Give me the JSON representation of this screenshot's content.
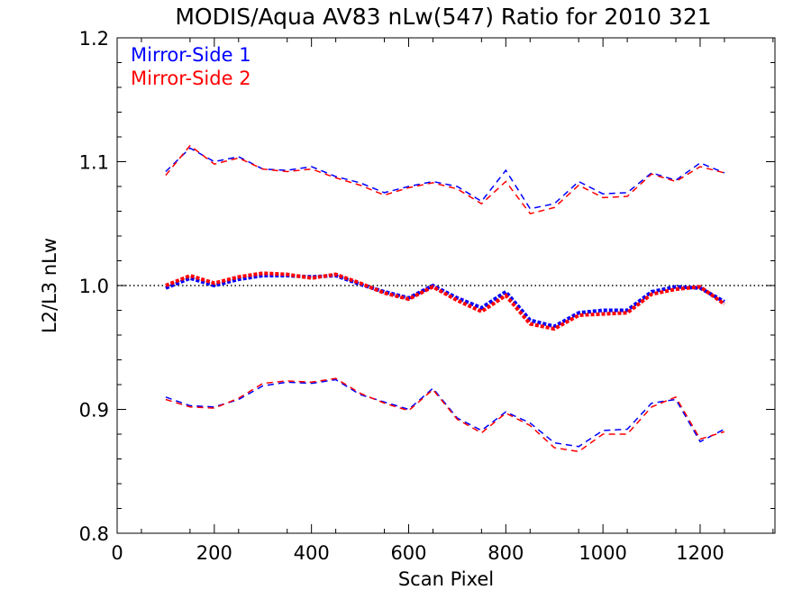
{
  "chart_data": {
    "type": "line",
    "title": "MODIS/Aqua AV83 nLw(547) Ratio for 2010 321",
    "xlabel": "Scan Pixel",
    "ylabel": "L2/L3 nLw",
    "xlim": [
      0,
      1354
    ],
    "ylim": [
      0.8,
      1.2
    ],
    "xticks": [
      0,
      200,
      400,
      600,
      800,
      1000,
      1200
    ],
    "xtick_labels": [
      "0",
      "200",
      "400",
      "600",
      "800",
      "1000",
      "1200"
    ],
    "yticks": [
      0.8,
      0.9,
      1.0,
      1.1,
      1.2
    ],
    "ytick_labels": [
      "0.8",
      "0.9",
      "1.0",
      "1.1",
      "1.2"
    ],
    "reference_line": 1.0,
    "legend": {
      "placement": "top-left",
      "entries": [
        "Mirror-Side 1",
        "Mirror-Side 2"
      ]
    },
    "colors": {
      "ms1": "#0000ff",
      "ms2": "#ff0000",
      "reference": "#000000"
    },
    "x": [
      100,
      150,
      200,
      250,
      300,
      350,
      400,
      450,
      500,
      550,
      600,
      650,
      700,
      750,
      800,
      850,
      900,
      950,
      1000,
      1050,
      1100,
      1150,
      1200,
      1250
    ],
    "series": [
      {
        "name": "Mirror-Side 1",
        "band": "upper",
        "color": "#0000ff",
        "values": [
          1.092,
          1.111,
          1.1,
          1.104,
          1.094,
          1.093,
          1.096,
          1.088,
          1.083,
          1.075,
          1.08,
          1.084,
          1.08,
          1.068,
          1.093,
          1.062,
          1.066,
          1.084,
          1.074,
          1.075,
          1.091,
          1.085,
          1.099,
          1.091
        ]
      },
      {
        "name": "Mirror-Side 2",
        "band": "upper",
        "color": "#ff0000",
        "values": [
          1.089,
          1.113,
          1.098,
          1.103,
          1.094,
          1.092,
          1.094,
          1.087,
          1.081,
          1.073,
          1.079,
          1.083,
          1.078,
          1.066,
          1.084,
          1.058,
          1.063,
          1.081,
          1.071,
          1.072,
          1.09,
          1.084,
          1.096,
          1.091
        ]
      },
      {
        "name": "Mirror-Side 1",
        "band": "mean",
        "color": "#0000ff",
        "values": [
          0.998,
          1.006,
          1.0,
          1.005,
          1.008,
          1.008,
          1.007,
          1.008,
          1.001,
          0.995,
          0.99,
          1.0,
          0.99,
          0.982,
          0.995,
          0.972,
          0.967,
          0.978,
          0.98,
          0.98,
          0.995,
          0.999,
          0.998,
          0.987
        ]
      },
      {
        "name": "Mirror-Side 2",
        "band": "mean",
        "color": "#ff0000",
        "values": [
          1.0,
          1.008,
          1.002,
          1.007,
          1.01,
          1.009,
          1.006,
          1.009,
          1.002,
          0.994,
          0.989,
          0.999,
          0.988,
          0.979,
          0.992,
          0.969,
          0.965,
          0.976,
          0.977,
          0.978,
          0.993,
          0.997,
          0.999,
          0.985
        ]
      },
      {
        "name": "Mirror-Side 1",
        "band": "lower",
        "color": "#0000ff",
        "values": [
          0.91,
          0.903,
          0.902,
          0.908,
          0.919,
          0.922,
          0.921,
          0.924,
          0.912,
          0.906,
          0.9,
          0.917,
          0.893,
          0.883,
          0.898,
          0.889,
          0.873,
          0.87,
          0.883,
          0.884,
          0.905,
          0.908,
          0.874,
          0.884
        ]
      },
      {
        "name": "Mirror-Side 2",
        "band": "lower",
        "color": "#ff0000",
        "values": [
          0.908,
          0.902,
          0.901,
          0.909,
          0.921,
          0.923,
          0.922,
          0.925,
          0.913,
          0.905,
          0.899,
          0.916,
          0.892,
          0.881,
          0.897,
          0.887,
          0.869,
          0.866,
          0.88,
          0.88,
          0.902,
          0.91,
          0.876,
          0.882
        ]
      }
    ]
  }
}
